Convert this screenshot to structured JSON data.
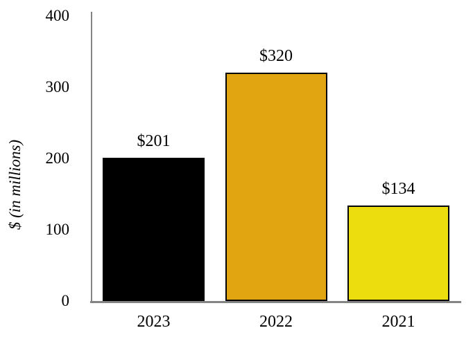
{
  "chart_data": {
    "type": "bar",
    "title": "",
    "xlabel": "",
    "ylabel": "$ (in millions)",
    "categories": [
      "2023",
      "2022",
      "2021"
    ],
    "values": [
      201,
      320,
      134
    ],
    "value_labels": [
      "$201",
      "$320",
      "$134"
    ],
    "yticks": [
      400,
      300,
      200,
      100,
      0
    ],
    "ylim": [
      0,
      400
    ],
    "grid": false,
    "legend": false,
    "bar_colors": [
      "#000000",
      "#E0A510",
      "#ECDD0E"
    ],
    "bar_border_color": "#000000",
    "axis_color": "#848484",
    "text_color": "#000000"
  }
}
